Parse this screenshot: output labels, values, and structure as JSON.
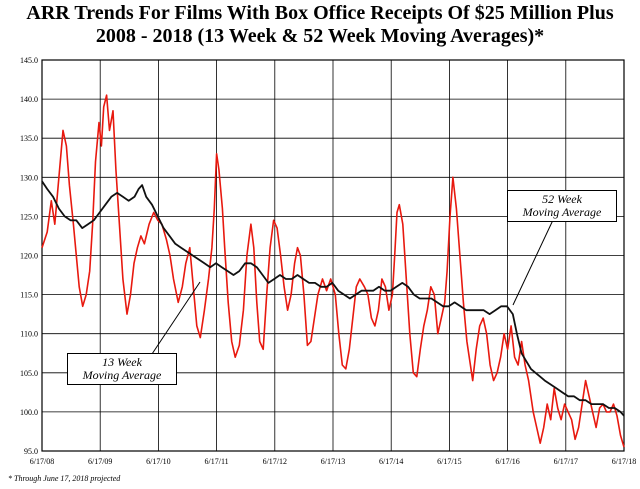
{
  "chart_data": {
    "type": "line",
    "title": [
      "ARR Trends For Films With Box Office Receipts Of $25 Million Plus",
      "2008 - 2018 (13 Week & 52 Week Moving Averages)*"
    ],
    "xlabel": "",
    "ylabel": "",
    "xlim": [
      2008.46,
      2018.46
    ],
    "ylim": [
      95.0,
      145.0
    ],
    "y_ticks": [
      "95.0",
      "100.0",
      "105.0",
      "110.0",
      "115.0",
      "120.0",
      "125.0",
      "130.0",
      "135.0",
      "140.0",
      "145.0"
    ],
    "x_ticks": [
      {
        "x": 2008.46,
        "label": "6/17/08"
      },
      {
        "x": 2009.46,
        "label": "6/17/09"
      },
      {
        "x": 2010.46,
        "label": "6/17/10"
      },
      {
        "x": 2011.46,
        "label": "6/17/11"
      },
      {
        "x": 2012.46,
        "label": "6/17/12"
      },
      {
        "x": 2013.46,
        "label": "6/17/13"
      },
      {
        "x": 2014.46,
        "label": "6/17/14"
      },
      {
        "x": 2015.46,
        "label": "6/17/15"
      },
      {
        "x": 2016.46,
        "label": "6/17/16"
      },
      {
        "x": 2017.46,
        "label": "6/17/17"
      },
      {
        "x": 2018.46,
        "label": "6/17/18"
      }
    ],
    "grid": true,
    "series": [
      {
        "name": "13 Week Moving Average",
        "color": "#e8190f",
        "points": [
          [
            2008.46,
            121.0
          ],
          [
            2008.55,
            123.0
          ],
          [
            2008.62,
            127.0
          ],
          [
            2008.68,
            124.0
          ],
          [
            2008.75,
            130.0
          ],
          [
            2008.82,
            136.0
          ],
          [
            2008.88,
            134.0
          ],
          [
            2008.93,
            129.0
          ],
          [
            2009.0,
            124.0
          ],
          [
            2009.05,
            120.0
          ],
          [
            2009.1,
            116.0
          ],
          [
            2009.16,
            113.5
          ],
          [
            2009.22,
            115.0
          ],
          [
            2009.28,
            118.0
          ],
          [
            2009.33,
            124.0
          ],
          [
            2009.38,
            132.0
          ],
          [
            2009.44,
            137.0
          ],
          [
            2009.48,
            134.0
          ],
          [
            2009.52,
            139.0
          ],
          [
            2009.57,
            140.5
          ],
          [
            2009.62,
            136.0
          ],
          [
            2009.68,
            138.5
          ],
          [
            2009.73,
            131.0
          ],
          [
            2009.79,
            124.0
          ],
          [
            2009.85,
            117.0
          ],
          [
            2009.92,
            112.5
          ],
          [
            2009.98,
            115.0
          ],
          [
            2010.04,
            119.0
          ],
          [
            2010.1,
            121.0
          ],
          [
            2010.16,
            122.5
          ],
          [
            2010.22,
            121.5
          ],
          [
            2010.3,
            124.0
          ],
          [
            2010.38,
            125.5
          ],
          [
            2010.45,
            124.5
          ],
          [
            2010.52,
            124.0
          ],
          [
            2010.6,
            122.0
          ],
          [
            2010.66,
            120.0
          ],
          [
            2010.72,
            117.0
          ],
          [
            2010.8,
            114.0
          ],
          [
            2010.87,
            116.0
          ],
          [
            2010.93,
            119.0
          ],
          [
            2011.0,
            121.0
          ],
          [
            2011.06,
            116.0
          ],
          [
            2011.12,
            111.0
          ],
          [
            2011.18,
            109.5
          ],
          [
            2011.25,
            113.0
          ],
          [
            2011.32,
            117.0
          ],
          [
            2011.38,
            121.0
          ],
          [
            2011.42,
            126.0
          ],
          [
            2011.46,
            133.0
          ],
          [
            2011.5,
            131.0
          ],
          [
            2011.56,
            126.0
          ],
          [
            2011.6,
            121.0
          ],
          [
            2011.66,
            114.0
          ],
          [
            2011.72,
            109.0
          ],
          [
            2011.78,
            107.0
          ],
          [
            2011.85,
            108.5
          ],
          [
            2011.92,
            113.0
          ],
          [
            2011.98,
            120.0
          ],
          [
            2012.05,
            124.0
          ],
          [
            2012.1,
            121.0
          ],
          [
            2012.15,
            114.0
          ],
          [
            2012.2,
            109.0
          ],
          [
            2012.26,
            108.0
          ],
          [
            2012.32,
            115.0
          ],
          [
            2012.38,
            121.0
          ],
          [
            2012.44,
            124.5
          ],
          [
            2012.5,
            123.5
          ],
          [
            2012.56,
            120.0
          ],
          [
            2012.62,
            116.0
          ],
          [
            2012.68,
            113.0
          ],
          [
            2012.74,
            115.0
          ],
          [
            2012.8,
            119.0
          ],
          [
            2012.85,
            121.0
          ],
          [
            2012.9,
            120.0
          ],
          [
            2012.96,
            115.0
          ],
          [
            2013.02,
            108.5
          ],
          [
            2013.08,
            109.0
          ],
          [
            2013.14,
            112.0
          ],
          [
            2013.2,
            115.0
          ],
          [
            2013.28,
            117.0
          ],
          [
            2013.35,
            115.5
          ],
          [
            2013.42,
            117.0
          ],
          [
            2013.5,
            115.0
          ],
          [
            2013.56,
            110.0
          ],
          [
            2013.62,
            106.0
          ],
          [
            2013.68,
            105.5
          ],
          [
            2013.74,
            108.0
          ],
          [
            2013.8,
            112.0
          ],
          [
            2013.86,
            116.0
          ],
          [
            2013.92,
            117.0
          ],
          [
            2014.0,
            116.0
          ],
          [
            2014.06,
            115.0
          ],
          [
            2014.12,
            112.0
          ],
          [
            2014.18,
            111.0
          ],
          [
            2014.24,
            113.0
          ],
          [
            2014.3,
            117.0
          ],
          [
            2014.36,
            116.0
          ],
          [
            2014.42,
            113.0
          ],
          [
            2014.48,
            115.0
          ],
          [
            2014.52,
            120.0
          ],
          [
            2014.56,
            125.5
          ],
          [
            2014.6,
            126.5
          ],
          [
            2014.66,
            124.0
          ],
          [
            2014.72,
            117.0
          ],
          [
            2014.78,
            110.0
          ],
          [
            2014.84,
            105.0
          ],
          [
            2014.9,
            104.5
          ],
          [
            2014.96,
            108.0
          ],
          [
            2015.02,
            111.0
          ],
          [
            2015.08,
            113.0
          ],
          [
            2015.14,
            116.0
          ],
          [
            2015.2,
            115.0
          ],
          [
            2015.26,
            110.0
          ],
          [
            2015.32,
            112.0
          ],
          [
            2015.38,
            114.0
          ],
          [
            2015.42,
            118.0
          ],
          [
            2015.47,
            125.0
          ],
          [
            2015.52,
            130.0
          ],
          [
            2015.58,
            126.0
          ],
          [
            2015.64,
            120.0
          ],
          [
            2015.7,
            114.0
          ],
          [
            2015.76,
            109.0
          ],
          [
            2015.82,
            106.0
          ],
          [
            2015.86,
            104.0
          ],
          [
            2015.92,
            108.0
          ],
          [
            2015.98,
            111.0
          ],
          [
            2016.04,
            112.0
          ],
          [
            2016.1,
            110.0
          ],
          [
            2016.16,
            106.0
          ],
          [
            2016.22,
            104.0
          ],
          [
            2016.28,
            105.0
          ],
          [
            2016.34,
            107.0
          ],
          [
            2016.4,
            110.0
          ],
          [
            2016.46,
            108.0
          ],
          [
            2016.52,
            111.0
          ],
          [
            2016.58,
            107.0
          ],
          [
            2016.64,
            106.0
          ],
          [
            2016.7,
            109.0
          ],
          [
            2016.76,
            106.0
          ],
          [
            2016.82,
            104.0
          ],
          [
            2016.9,
            100.0
          ],
          [
            2016.96,
            98.0
          ],
          [
            2017.02,
            96.0
          ],
          [
            2017.08,
            98.0
          ],
          [
            2017.14,
            101.0
          ],
          [
            2017.2,
            99.0
          ],
          [
            2017.26,
            103.0
          ],
          [
            2017.32,
            100.5
          ],
          [
            2017.38,
            99.0
          ],
          [
            2017.44,
            101.0
          ],
          [
            2017.5,
            100.0
          ],
          [
            2017.56,
            99.0
          ],
          [
            2017.62,
            96.5
          ],
          [
            2017.68,
            98.0
          ],
          [
            2017.74,
            101.0
          ],
          [
            2017.8,
            104.0
          ],
          [
            2017.86,
            102.0
          ],
          [
            2017.92,
            100.0
          ],
          [
            2017.98,
            98.0
          ],
          [
            2018.04,
            100.5
          ],
          [
            2018.1,
            101.0
          ],
          [
            2018.16,
            100.0
          ],
          [
            2018.22,
            100.0
          ],
          [
            2018.28,
            101.0
          ],
          [
            2018.34,
            99.5
          ],
          [
            2018.4,
            97.0
          ],
          [
            2018.46,
            95.5
          ]
        ]
      },
      {
        "name": "52 Week Moving Average",
        "color": "#111111",
        "points": [
          [
            2008.46,
            129.5
          ],
          [
            2008.55,
            128.5
          ],
          [
            2008.65,
            127.5
          ],
          [
            2008.75,
            126.0
          ],
          [
            2008.85,
            125.0
          ],
          [
            2008.95,
            124.5
          ],
          [
            2009.05,
            124.5
          ],
          [
            2009.15,
            123.5
          ],
          [
            2009.25,
            124.0
          ],
          [
            2009.35,
            124.5
          ],
          [
            2009.45,
            125.5
          ],
          [
            2009.55,
            126.5
          ],
          [
            2009.65,
            127.5
          ],
          [
            2009.75,
            128.0
          ],
          [
            2009.85,
            127.5
          ],
          [
            2009.95,
            127.0
          ],
          [
            2010.05,
            127.5
          ],
          [
            2010.12,
            128.5
          ],
          [
            2010.18,
            129.0
          ],
          [
            2010.25,
            127.5
          ],
          [
            2010.35,
            126.5
          ],
          [
            2010.45,
            125.0
          ],
          [
            2010.55,
            123.5
          ],
          [
            2010.65,
            122.5
          ],
          [
            2010.75,
            121.5
          ],
          [
            2010.85,
            121.0
          ],
          [
            2010.95,
            120.5
          ],
          [
            2011.05,
            120.0
          ],
          [
            2011.15,
            119.5
          ],
          [
            2011.25,
            119.0
          ],
          [
            2011.35,
            118.5
          ],
          [
            2011.45,
            119.0
          ],
          [
            2011.55,
            118.5
          ],
          [
            2011.65,
            118.0
          ],
          [
            2011.75,
            117.5
          ],
          [
            2011.85,
            118.0
          ],
          [
            2011.95,
            119.0
          ],
          [
            2012.05,
            119.0
          ],
          [
            2012.15,
            118.5
          ],
          [
            2012.25,
            117.5
          ],
          [
            2012.35,
            116.5
          ],
          [
            2012.45,
            117.0
          ],
          [
            2012.55,
            117.5
          ],
          [
            2012.65,
            117.0
          ],
          [
            2012.75,
            117.0
          ],
          [
            2012.85,
            117.5
          ],
          [
            2012.95,
            117.0
          ],
          [
            2013.05,
            116.5
          ],
          [
            2013.15,
            116.5
          ],
          [
            2013.25,
            116.0
          ],
          [
            2013.35,
            116.0
          ],
          [
            2013.45,
            116.5
          ],
          [
            2013.55,
            115.5
          ],
          [
            2013.65,
            115.0
          ],
          [
            2013.75,
            114.5
          ],
          [
            2013.85,
            115.0
          ],
          [
            2013.95,
            115.5
          ],
          [
            2014.05,
            115.5
          ],
          [
            2014.15,
            115.5
          ],
          [
            2014.25,
            116.0
          ],
          [
            2014.35,
            115.5
          ],
          [
            2014.45,
            115.5
          ],
          [
            2014.55,
            116.0
          ],
          [
            2014.65,
            116.5
          ],
          [
            2014.75,
            116.0
          ],
          [
            2014.85,
            115.0
          ],
          [
            2014.95,
            114.5
          ],
          [
            2015.05,
            114.5
          ],
          [
            2015.15,
            114.5
          ],
          [
            2015.25,
            114.0
          ],
          [
            2015.35,
            113.5
          ],
          [
            2015.45,
            113.5
          ],
          [
            2015.55,
            114.0
          ],
          [
            2015.65,
            113.5
          ],
          [
            2015.75,
            113.0
          ],
          [
            2015.85,
            113.0
          ],
          [
            2015.95,
            113.0
          ],
          [
            2016.05,
            113.0
          ],
          [
            2016.15,
            112.5
          ],
          [
            2016.25,
            113.0
          ],
          [
            2016.35,
            113.5
          ],
          [
            2016.45,
            113.5
          ],
          [
            2016.55,
            112.5
          ],
          [
            2016.62,
            110.0
          ],
          [
            2016.7,
            107.5
          ],
          [
            2016.78,
            106.5
          ],
          [
            2016.86,
            105.5
          ],
          [
            2016.94,
            105.0
          ],
          [
            2017.02,
            104.5
          ],
          [
            2017.1,
            104.0
          ],
          [
            2017.2,
            103.5
          ],
          [
            2017.3,
            103.0
          ],
          [
            2017.4,
            102.5
          ],
          [
            2017.5,
            102.0
          ],
          [
            2017.6,
            102.0
          ],
          [
            2017.7,
            101.5
          ],
          [
            2017.8,
            101.5
          ],
          [
            2017.9,
            101.0
          ],
          [
            2018.0,
            101.0
          ],
          [
            2018.1,
            101.0
          ],
          [
            2018.2,
            100.5
          ],
          [
            2018.3,
            100.5
          ],
          [
            2018.4,
            100.0
          ],
          [
            2018.46,
            99.5
          ]
        ]
      }
    ]
  },
  "annotations": {
    "a52": [
      "52 Week",
      "Moving Average"
    ],
    "a13": [
      "13 Week",
      "Moving Average"
    ]
  },
  "footnote": "* Through June 17, 2018 projected"
}
